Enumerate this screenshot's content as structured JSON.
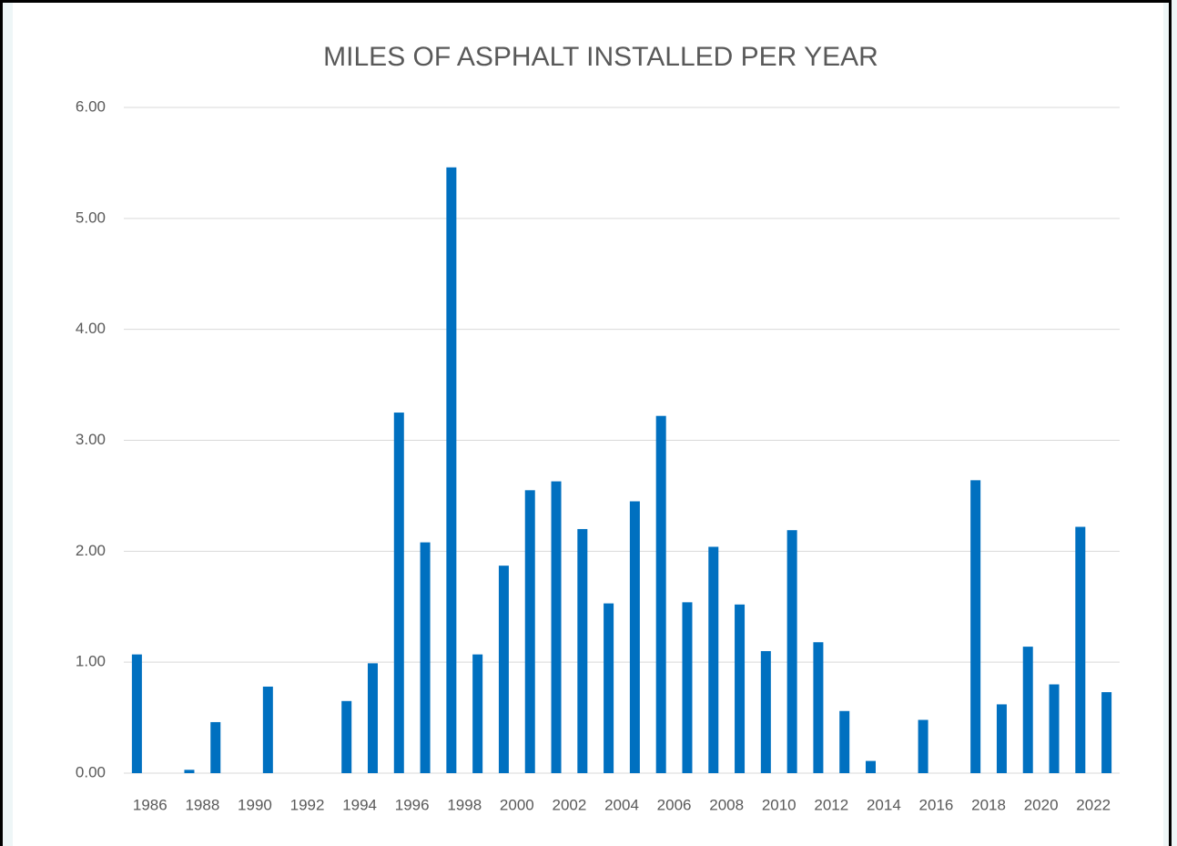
{
  "chart_data": {
    "type": "bar",
    "title": "MILES OF ASPHALT INSTALLED PER YEAR",
    "categories": [
      "1986",
      null,
      "1988",
      null,
      "1990",
      null,
      "1992",
      null,
      "1994",
      null,
      "1996",
      null,
      "1998",
      null,
      "2000",
      null,
      "2002",
      null,
      "2004",
      null,
      "2006",
      null,
      "2008",
      null,
      "2010",
      null,
      "2012",
      null,
      "2014",
      null,
      "2016",
      null,
      "2018",
      null,
      "2020",
      null,
      "2022",
      null
    ],
    "values": [
      1.07,
      0,
      0.03,
      0.46,
      0,
      0.78,
      0,
      0,
      0.65,
      0.99,
      3.25,
      2.08,
      5.46,
      1.07,
      1.87,
      2.55,
      2.63,
      2.2,
      1.53,
      2.45,
      3.22,
      1.54,
      2.04,
      1.52,
      1.1,
      2.19,
      1.18,
      0.56,
      0.11,
      0,
      0.48,
      0,
      2.64,
      0.62,
      1.14,
      0.8,
      2.22,
      0.73
    ],
    "color": "#0070c0",
    "ylim": [
      0,
      6
    ],
    "yticks": [
      {
        "value": 0,
        "label": "0.00"
      },
      {
        "value": 1,
        "label": "1.00"
      },
      {
        "value": 2,
        "label": "2.00"
      },
      {
        "value": 3,
        "label": "3.00"
      },
      {
        "value": 4,
        "label": "4.00"
      },
      {
        "value": 5,
        "label": "5.00"
      },
      {
        "value": 6,
        "label": "6.00"
      }
    ],
    "grid": true
  }
}
